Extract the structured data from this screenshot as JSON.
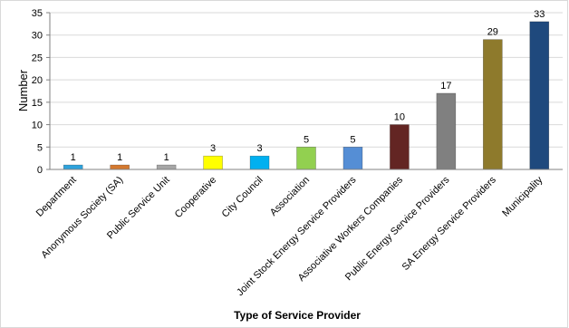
{
  "chart_data": {
    "type": "bar",
    "title": "",
    "xlabel": "Type of Service Provider",
    "ylabel": "Number",
    "ylim": [
      0,
      35
    ],
    "yticks": [
      0,
      5,
      10,
      15,
      20,
      25,
      30,
      35
    ],
    "grid": true,
    "legend": "none",
    "categories": [
      "Department",
      "Anonymous Society (SA)",
      "Public Service Unit",
      "Cooperative",
      "City Council",
      "Association",
      "Joint Stock Energy Service Providers",
      "Associative Workers Companies",
      "Public Energy Service Providers",
      "SA Energy Service Providers",
      "Municipality"
    ],
    "values": [
      1,
      1,
      1,
      3,
      3,
      5,
      5,
      10,
      17,
      29,
      33
    ],
    "colors": [
      "#2ea2dc",
      "#d4792f",
      "#a6a6a6",
      "#ffff00",
      "#00b0f0",
      "#92d050",
      "#558ed5",
      "#632523",
      "#808080",
      "#8e7a2c",
      "#1f497d"
    ]
  }
}
